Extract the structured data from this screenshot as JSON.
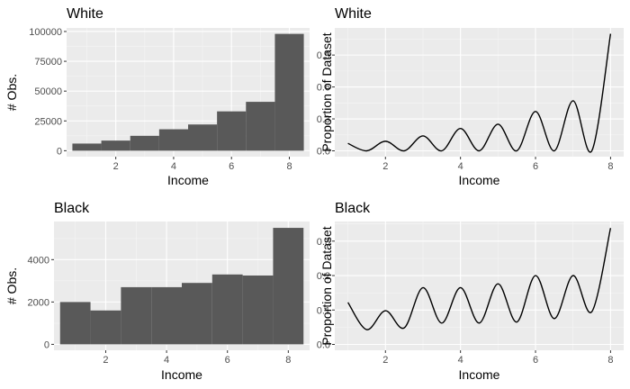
{
  "theme": {
    "panel_bg": "#ebebeb",
    "grid_major": "#ffffff",
    "grid_minor": "#f5f5f5",
    "bar_fill": "#595959",
    "line_color": "#000000",
    "tick_color": "#333333"
  },
  "chart_data": [
    {
      "type": "bar",
      "title": "White",
      "xlabel": "Income",
      "ylabel": "# Obs.",
      "xlim": [
        0.3,
        8.7
      ],
      "ylim": [
        -5000,
        103000
      ],
      "xticks": [
        2,
        4,
        6,
        8
      ],
      "yticks": [
        0,
        25000,
        50000,
        75000,
        100000
      ],
      "ytick_labels": [
        "0",
        "25000",
        "50000",
        "75000",
        "100000"
      ],
      "bin_width": 1,
      "categories": [
        1,
        2,
        3,
        4,
        5,
        6,
        7,
        8
      ],
      "values": [
        6000,
        8500,
        12500,
        18000,
        22000,
        33000,
        41000,
        98000
      ]
    },
    {
      "type": "line",
      "title": "White",
      "xlabel": "Income",
      "ylabel": "Proportion of Dataset",
      "xlim": [
        0.65,
        8.35
      ],
      "ylim": [
        -0.055,
        1.155
      ],
      "xticks": [
        2,
        4,
        6,
        8
      ],
      "yticks": [
        0.0,
        0.3,
        0.6,
        0.9
      ],
      "ytick_labels": [
        "0.0",
        "0.3",
        "0.6",
        "0.9"
      ],
      "x": [
        1,
        1.5,
        2,
        2.5,
        3,
        3.5,
        4,
        4.5,
        5,
        5.5,
        6,
        6.5,
        7,
        7.5,
        8
      ],
      "y": [
        0.07,
        0.0,
        0.09,
        0.0,
        0.14,
        0.0,
        0.21,
        0.0,
        0.25,
        0.0,
        0.37,
        0.0,
        0.47,
        0.0,
        1.1
      ]
    },
    {
      "type": "bar",
      "title": "Black",
      "xlabel": "Income",
      "ylabel": "# Obs.",
      "xlim": [
        0.3,
        8.7
      ],
      "ylim": [
        -280,
        5800
      ],
      "xticks": [
        2,
        4,
        6,
        8
      ],
      "yticks": [
        0,
        2000,
        4000
      ],
      "ytick_labels": [
        "0",
        "2000",
        "4000"
      ],
      "bin_width": 1,
      "categories": [
        1,
        2,
        3,
        4,
        5,
        6,
        7,
        8
      ],
      "values": [
        2000,
        1600,
        2700,
        2700,
        2900,
        3300,
        3250,
        5500
      ]
    },
    {
      "type": "line",
      "title": "Black",
      "xlabel": "Income",
      "ylabel": "Proportion of Dataset",
      "xlim": [
        0.65,
        8.35
      ],
      "ylim": [
        -0.017,
        0.357
      ],
      "xticks": [
        2,
        4,
        6,
        8
      ],
      "yticks": [
        0.0,
        0.1,
        0.2,
        0.3
      ],
      "ytick_labels": [
        "0.0",
        "0.1",
        "0.2",
        "0.3"
      ],
      "x": [
        1,
        1.5,
        2,
        2.5,
        3,
        3.5,
        4,
        4.5,
        5,
        5.5,
        6,
        6.5,
        7,
        7.5,
        8
      ],
      "y": [
        0.122,
        0.043,
        0.098,
        0.048,
        0.165,
        0.062,
        0.165,
        0.062,
        0.176,
        0.065,
        0.2,
        0.075,
        0.2,
        0.095,
        0.338
      ]
    }
  ]
}
